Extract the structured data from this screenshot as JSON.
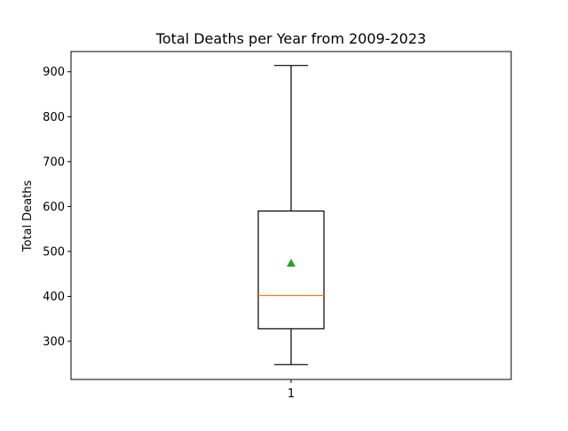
{
  "chart_data": {
    "type": "box",
    "title": "Total Deaths per Year from 2009-2023",
    "xlabel": "",
    "ylabel": "Total Deaths",
    "categories": [
      "1"
    ],
    "ylim": [
      215,
      945
    ],
    "yticks": [
      300,
      400,
      500,
      600,
      700,
      800,
      900
    ],
    "grid": false,
    "boxes": [
      {
        "category": "1",
        "whisker_low": 248,
        "q1": 328,
        "median": 402,
        "q3": 590,
        "whisker_high": 914,
        "mean": 474
      }
    ],
    "colors": {
      "box": "#000000",
      "median": "#ff7f0e",
      "mean": "#2ca02c"
    }
  }
}
